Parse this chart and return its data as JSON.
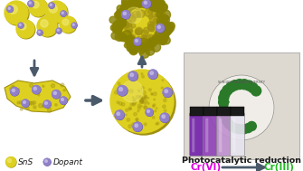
{
  "bg_color": "#ffffff",
  "sns_color": "#ddd020",
  "sns_highlight": "#f0e870",
  "sns_shadow": "#a09010",
  "sns_dark": "#888000",
  "dopant_color": "#9080c8",
  "dopant_highlight": "#c8c0e8",
  "arrow_color": "#4a5a6a",
  "text_color_black": "#1a1a1a",
  "text_cr6_color": "#dd00dd",
  "text_cr3_color": "#22bb22",
  "legend_sns_label": "SnS",
  "legend_dopant_label": "Dopant",
  "photocatalytic_text": "Photocatalytic reduction",
  "cr6_text": "Cr(VI)",
  "cr3_text": "Cr(III)",
  "legend_fontsize": 6.5,
  "figsize": [
    3.35,
    1.89
  ],
  "dpi": 100,
  "photo_bg": "#d8d0c8",
  "photo_border": "#aaaaaa",
  "vial_colors": [
    "#7020a8",
    "#9040b8",
    "#c090d0",
    "#e8e4f0"
  ],
  "vial_cap_color": "#1a1a1a",
  "logo_green": "#2a7a2a",
  "logo_white": "#f0f0f0",
  "logo_text_color": "#555555"
}
